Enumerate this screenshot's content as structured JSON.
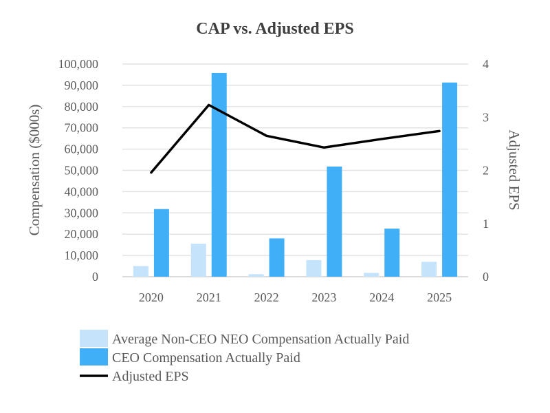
{
  "chart_data": {
    "type": "bar",
    "title": "CAP vs. Adjusted EPS",
    "categories": [
      "2020",
      "2021",
      "2022",
      "2023",
      "2024",
      "2025"
    ],
    "series": [
      {
        "name": "Average Non-CEO NEO Compensation Actually Paid",
        "type": "bar",
        "axis": "left",
        "color": "#c5e4fb",
        "values": [
          5000,
          15500,
          1200,
          7800,
          1800,
          7000
        ]
      },
      {
        "name": "CEO Compensation Actually Paid",
        "type": "bar",
        "axis": "left",
        "color": "#41aff7",
        "values": [
          31800,
          95800,
          18000,
          51800,
          22600,
          91300
        ]
      },
      {
        "name": "Adjusted EPS",
        "type": "line",
        "axis": "right",
        "color": "#000000",
        "values": [
          1.96,
          3.23,
          2.65,
          2.43,
          2.59,
          2.74
        ]
      }
    ],
    "ylabel": "Compensation ($000s)",
    "y2label": "Adjusted EPS",
    "ylim": [
      0,
      100000
    ],
    "y2lim": [
      0,
      4
    ],
    "yticks": [
      "0",
      "10,000",
      "20,000",
      "30,000",
      "40,000",
      "50,000",
      "60,000",
      "70,000",
      "80,000",
      "90,000",
      "100,000"
    ],
    "y2ticks": [
      "0",
      "1",
      "2",
      "3",
      "4"
    ],
    "grid": true,
    "legend_position": "bottom-left"
  }
}
